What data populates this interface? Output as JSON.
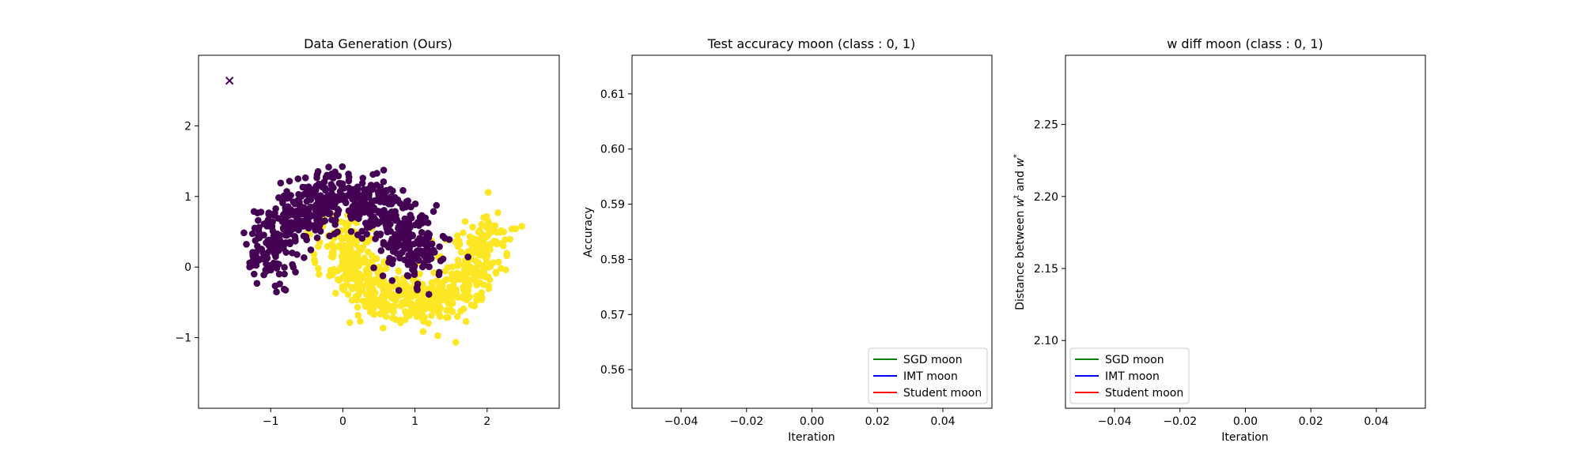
{
  "chart_data": [
    {
      "type": "scatter",
      "title": "Data Generation (Ours)",
      "xlabel": "",
      "ylabel": "",
      "xlim": [
        -2.0,
        3.0
      ],
      "ylim": [
        -2.0,
        3.0
      ],
      "xticks": [
        -1,
        0,
        1,
        2
      ],
      "yticks": [
        -1,
        0,
        1,
        2
      ],
      "xtick_labels": [
        "−1",
        "0",
        "1",
        "2"
      ],
      "ytick_labels": [
        "−1",
        "0",
        "1",
        "2"
      ],
      "grid": false,
      "classes": [
        {
          "label": "0",
          "color": "#440154"
        },
        {
          "label": "1",
          "color": "#fde725"
        }
      ],
      "highlight_point": {
        "x": -1.57,
        "y": 2.64,
        "marker": "x",
        "color": "#440154"
      }
    },
    {
      "type": "line",
      "title": "Test accuracy moon (class : 0, 1)",
      "xlabel": "Iteration",
      "ylabel": "Accuracy",
      "xlim": [
        -0.055,
        0.055
      ],
      "ylim": [
        0.553,
        0.617
      ],
      "xticks": [
        -0.04,
        -0.02,
        0.0,
        0.02,
        0.04
      ],
      "yticks": [
        0.56,
        0.57,
        0.58,
        0.59,
        0.6,
        0.61
      ],
      "xtick_labels": [
        "−0.04",
        "−0.02",
        "0.00",
        "0.02",
        "0.04"
      ],
      "ytick_labels": [
        "0.56",
        "0.57",
        "0.58",
        "0.59",
        "0.60",
        "0.61"
      ],
      "grid": false,
      "legend_position": "lower right",
      "series": [
        {
          "name": "SGD moon",
          "color": "#008000",
          "x": [],
          "y": []
        },
        {
          "name": "IMT moon",
          "color": "#0000ff",
          "x": [],
          "y": []
        },
        {
          "name": "Student moon",
          "color": "#ff0000",
          "x": [],
          "y": []
        }
      ]
    },
    {
      "type": "line",
      "title": "w diff moon (class : 0, 1)",
      "xlabel": "Iteration",
      "ylabel": "Distance between w^t and w^*",
      "xlim": [
        -0.055,
        0.055
      ],
      "ylim": [
        2.053,
        2.298
      ],
      "xticks": [
        -0.04,
        -0.02,
        0.0,
        0.02,
        0.04
      ],
      "yticks": [
        2.1,
        2.15,
        2.2,
        2.25
      ],
      "xtick_labels": [
        "−0.04",
        "−0.02",
        "0.00",
        "0.02",
        "0.04"
      ],
      "ytick_labels": [
        "2.10",
        "2.15",
        "2.20",
        "2.25"
      ],
      "grid": false,
      "legend_position": "lower left",
      "series": [
        {
          "name": "SGD moon",
          "color": "#008000",
          "x": [],
          "y": []
        },
        {
          "name": "IMT moon",
          "color": "#0000ff",
          "x": [],
          "y": []
        },
        {
          "name": "Student moon",
          "color": "#ff0000",
          "x": [],
          "y": []
        }
      ]
    }
  ]
}
